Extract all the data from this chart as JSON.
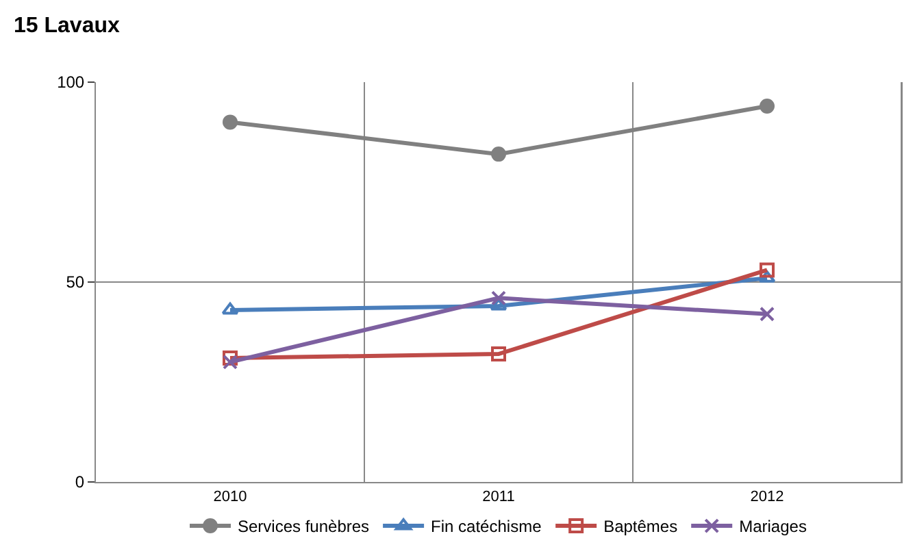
{
  "chart_data": {
    "type": "line",
    "title": "15 Lavaux",
    "categories": [
      "2010",
      "2011",
      "2012"
    ],
    "series": [
      {
        "name": "Services funèbres",
        "color": "#808080",
        "marker": "circle",
        "values": [
          90,
          82,
          94
        ]
      },
      {
        "name": "Fin catéchisme",
        "color": "#4a7ebb",
        "marker": "triangle",
        "values": [
          43,
          44,
          51
        ]
      },
      {
        "name": "Baptêmes",
        "color": "#be4b48",
        "marker": "square",
        "values": [
          31,
          32,
          53
        ]
      },
      {
        "name": "Mariages",
        "color": "#7d60a0",
        "marker": "cross",
        "values": [
          30,
          46,
          42
        ]
      }
    ],
    "ylim": [
      0,
      100
    ],
    "yticks": [
      0,
      50,
      100
    ],
    "grid": true,
    "legend": "bottom"
  }
}
